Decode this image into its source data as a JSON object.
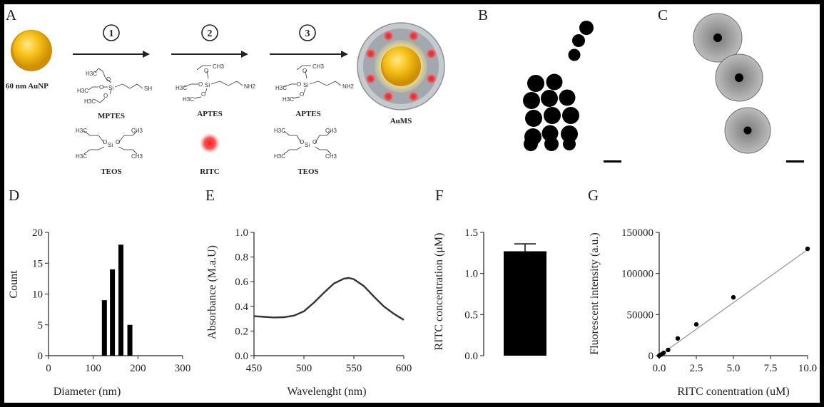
{
  "panel_labels": {
    "a": "A",
    "b": "B",
    "c": "C",
    "d": "D",
    "e": "E",
    "f": "F",
    "g": "G"
  },
  "scheme": {
    "start_label": "60 nm AuNP",
    "product_label": "AuMS",
    "steps": [
      {
        "number": "1",
        "reagents": [
          "MPTES",
          "TEOS"
        ]
      },
      {
        "number": "2",
        "reagents": [
          "APTES",
          "RITC"
        ]
      },
      {
        "number": "3",
        "reagents": [
          "APTES",
          "TEOS"
        ]
      }
    ],
    "structure_labels": {
      "h3c": "H3C",
      "ch3": "CH3",
      "o": "O",
      "si": "Si",
      "sh": "SH",
      "nh2": "NH2"
    },
    "colors": {
      "gold": "#f2b705",
      "rhodamine": "#e8141c",
      "silica": "#9fa3aa"
    }
  },
  "chart_data": [
    {
      "id": "D",
      "type": "bar",
      "xlabel": "Diameter (nm)",
      "ylabel": "Count",
      "x": [
        125,
        143,
        162,
        182
      ],
      "values": [
        9,
        14,
        18,
        5
      ],
      "xlim": [
        0,
        300
      ],
      "ylim": [
        0,
        20
      ],
      "xticks": [
        "0",
        "100",
        "200",
        "300"
      ],
      "yticks": [
        "0",
        "5",
        "10",
        "15",
        "20"
      ]
    },
    {
      "id": "E",
      "type": "line",
      "xlabel": "Wavelenght (nm)",
      "ylabel": "Absorbance (M.a.U)",
      "x": [
        450,
        460,
        470,
        480,
        490,
        500,
        510,
        520,
        530,
        540,
        545,
        550,
        560,
        570,
        580,
        590,
        600
      ],
      "y": [
        0.32,
        0.315,
        0.31,
        0.312,
        0.325,
        0.36,
        0.43,
        0.51,
        0.585,
        0.625,
        0.63,
        0.62,
        0.565,
        0.48,
        0.4,
        0.34,
        0.29
      ],
      "xlim": [
        450,
        600
      ],
      "ylim": [
        0,
        1.0
      ],
      "xticks": [
        "450",
        "500",
        "550",
        "600"
      ],
      "yticks": [
        "0.0",
        "0.2",
        "0.4",
        "0.6",
        "0.8",
        "1.0"
      ]
    },
    {
      "id": "F",
      "type": "bar",
      "ylabel": "RITC concentration (μM)",
      "categories": [
        ""
      ],
      "values": [
        1.27
      ],
      "error": [
        0.09
      ],
      "ylim": [
        0,
        1.5
      ],
      "yticks": [
        "0.0",
        "0.5",
        "1.0",
        "1.5"
      ]
    },
    {
      "id": "G",
      "type": "scatter",
      "xlabel": "RITC conentration (uM)",
      "ylabel": "Fluorescent intensity (a.u.)",
      "x": [
        0,
        0.15,
        0.3,
        0.6,
        1.25,
        2.5,
        5,
        10
      ],
      "y": [
        0,
        1500,
        3500,
        7000,
        21000,
        38000,
        71000,
        130000
      ],
      "fit": [
        [
          0,
          0
        ],
        [
          10,
          129000
        ]
      ],
      "xlim": [
        0,
        10
      ],
      "ylim": [
        0,
        150000
      ],
      "xticks": [
        "0.0",
        "2.5",
        "5.0",
        "7.5",
        "10.0"
      ],
      "yticks": [
        "0",
        "50000",
        "100000",
        "150000"
      ]
    }
  ]
}
